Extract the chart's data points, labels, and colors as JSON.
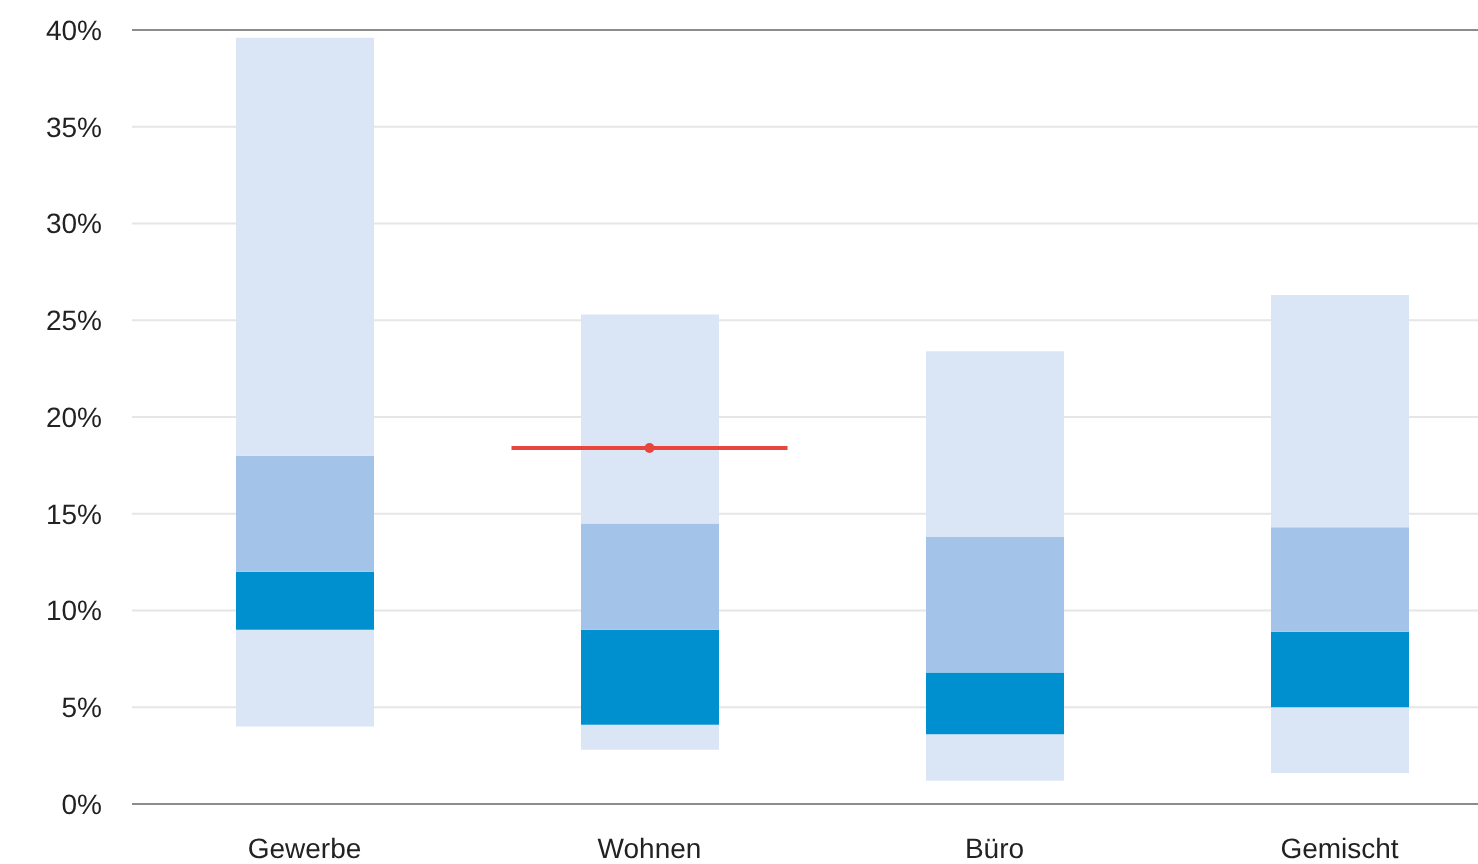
{
  "chart_data": {
    "type": "bar",
    "categories": [
      "Gewerbe",
      "Wohnen",
      "Büro",
      "Gemischt"
    ],
    "series": [
      {
        "color": "#dae6f5",
        "base": [
          4.0,
          2.8,
          1.2,
          1.6
        ],
        "values": [
          5.0,
          1.3,
          2.4,
          3.4
        ]
      },
      {
        "color": "#008fcf",
        "base": [
          9.0,
          4.1,
          3.6,
          5.0
        ],
        "values": [
          3.0,
          4.9,
          3.2,
          3.9
        ]
      },
      {
        "color": "#a3c3e8",
        "base": [
          12.0,
          9.0,
          6.8,
          8.9
        ],
        "values": [
          6.0,
          5.5,
          7.0,
          5.4
        ]
      },
      {
        "color": "#dae6f5",
        "base": [
          18.0,
          14.5,
          13.8,
          14.3
        ],
        "values": [
          21.6,
          10.8,
          9.6,
          12.0
        ]
      },
      {
        "type": "scatter",
        "color": "#e8453c",
        "values": [
          null,
          18.4,
          null,
          null
        ]
      }
    ],
    "ylim": [
      0,
      40
    ],
    "yticks": [
      {
        "value": 0,
        "label": "0%"
      },
      {
        "value": 5,
        "label": "5%"
      },
      {
        "value": 10,
        "label": "10%"
      },
      {
        "value": 15,
        "label": "15%"
      },
      {
        "value": 20,
        "label": "20%"
      },
      {
        "value": 25,
        "label": "25%"
      },
      {
        "value": 30,
        "label": "30%"
      },
      {
        "value": 35,
        "label": "35%"
      },
      {
        "value": 40,
        "label": "40%"
      }
    ],
    "grid": "y"
  }
}
